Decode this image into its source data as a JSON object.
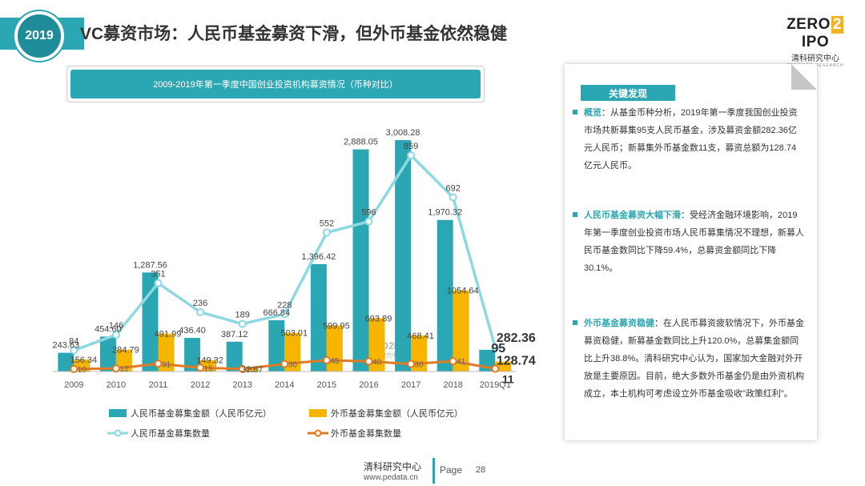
{
  "header": {
    "year_badge": "2019",
    "title": "VC募资市场：人民币基金募资下滑，但外币基金依然稳健",
    "brand_main_left": "ZERO",
    "brand_main_two": "2",
    "brand_main_right": "IPO",
    "brand_sub": "清科研究中心",
    "brand_en": "ZERO2IPO RESEARCH"
  },
  "chart_title": "2009-2019年第一季度中国创业投资机构募资情况（币种对比）",
  "colors": {
    "teal": "#2ba7b3",
    "gold": "#f7b500",
    "light_teal": "#8ed8e2",
    "orange": "#e07b22"
  },
  "chart_data": {
    "type": "bar",
    "categories": [
      "2009",
      "2010",
      "2011",
      "2012",
      "2013",
      "2014",
      "2015",
      "2016",
      "2017",
      "2018",
      "2019Q1"
    ],
    "series": [
      {
        "name": "人民币基金募集金额（人民币亿元）",
        "kind": "bar",
        "values": [
          243.63,
          454.6,
          1287.56,
          436.4,
          387.12,
          666.84,
          1396.42,
          2888.05,
          3008.28,
          1970.32,
          282.36
        ]
      },
      {
        "name": "外币基金募集金额（人民币亿元）",
        "kind": "bar",
        "values": [
          156.34,
          284.79,
          491.99,
          149.32,
          32.87,
          503.01,
          599.95,
          693.89,
          468.41,
          1054.64,
          128.74
        ]
      },
      {
        "name": "人民币基金募集数量",
        "kind": "line",
        "values": [
          84,
          146,
          351,
          236,
          189,
          228,
          552,
          596,
          859,
          692,
          95
        ]
      },
      {
        "name": "外币基金募集数量",
        "kind": "line",
        "values": [
          10,
          12,
          31,
          15,
          10,
          30,
          45,
          40,
          30,
          41,
          11
        ]
      }
    ],
    "bar_labels": [
      "243.63",
      "454.60",
      "1,287.56",
      "436.40",
      "387.12",
      "666.84",
      "1,396.42",
      "2,888.05",
      "3,008.28",
      "1,970.32",
      "282.36"
    ],
    "bar2_labels": [
      "156.34",
      "284.79",
      "491.99",
      "149.32",
      "32.87",
      "503.01",
      "599.95",
      "693.89",
      "468.41",
      "1054.64",
      "128.74"
    ],
    "line_labels": [
      "84",
      "146",
      "351",
      "236",
      "189",
      "228",
      "552",
      "596",
      "859",
      "692",
      "95"
    ],
    "line2_labels": [
      "10",
      "12",
      "31",
      "15",
      "10",
      "30",
      "45",
      "40",
      "30",
      "41",
      "11"
    ],
    "legend": {
      "rmb_amount": "人民币基金募集金额（人民币亿元）",
      "fx_amount": "外币基金募集金额（人民币亿元）",
      "rmb_count": "人民币基金募集数量",
      "fx_count": "外币基金募集数量"
    },
    "watermark_main": "ZERO2IPO",
    "watermark_sub": "清科研究中心",
    "grid": false,
    "legend_position": "bottom"
  },
  "panel": {
    "heading": "关键发现",
    "findings": [
      {
        "lead": "概览",
        "text": "：从基金币种分析，2019年第一季度我国创业投资市场共新募集95支人民币基金，涉及募资金额282.36亿元人民币；新募集外币基金数11支，募资总额为128.74亿元人民币。"
      },
      {
        "lead": "人民币基金募资大幅下滑",
        "text": "：受经济金融环境影响，2019年第一季度创业投资市场人民币募集情况不理想，新募人民币基金数同比下降59.4%，总募资金额同比下降30.1%。"
      },
      {
        "lead": "外币基金募资稳健",
        "text": "：在人民币募资疲软情况下，外币基金募资稳健，新募基金数同比上升120.0%，总募集金额同比上升38.8%。清科研究中心认为，国家加大金融对外开放是主要原因。目前，绝大多数外币基金仍是由外资机构成立，本土机构可考虑设立外币基金吸收\"政策红利\"。"
      }
    ]
  },
  "footer": {
    "org": "清科研究中心",
    "url": "www.pedata.cn",
    "page_label": "Page",
    "page_num": "28"
  }
}
